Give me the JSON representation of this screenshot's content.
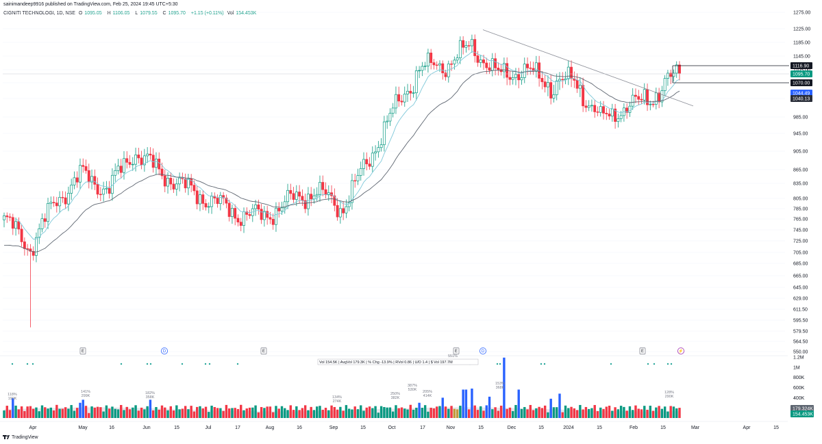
{
  "publisher": "sainimandeep9916 published on TradingView.com, Feb 25, 2024 19:45 UTC+5:30",
  "legend": {
    "symbol": "CIGNITI TECHNOLOGI, 1D, NSE",
    "o_label": "O",
    "o": "1095.05",
    "h_label": "H",
    "h": "1106.05",
    "l_label": "L",
    "l": "1079.55",
    "c_label": "C",
    "c": "1095.70",
    "change": "+1.15 (+0.11%)",
    "vol_label": "Vol",
    "vol": "154.453K"
  },
  "volume_stats": {
    "text": "Vol  154.5K  |  AvgVol  179.3K  |  % Chg  -13.9%  |  RVol  0.86  |  U/D  1.4  |  $ Vol  197.7M"
  },
  "footer": {
    "brand": "TradingView"
  },
  "colors": {
    "up": "#089981",
    "down": "#f23645",
    "ema_fast": "#7ec8d9",
    "ema_slow": "#5d6570",
    "trendline": "#8a8d96",
    "vol_up": "#089981",
    "vol_down": "#f23645",
    "vol_highlight": "#2962ff",
    "vol_gold": "#c49a3a",
    "dot": "#26a69a",
    "grid": "#f0f3fa"
  },
  "chart_data": [
    {
      "type": "candlestick",
      "symbol": "CIGNITI TECHNOLOGI",
      "interval": "1D",
      "exchange": "NSE",
      "y_scale": "log",
      "ylim": [
        550,
        1300
      ],
      "y_ticks": [
        "1275.00",
        "1225.00",
        "1185.00",
        "1145.00",
        "1105.00",
        "1070.00",
        "1044.49",
        "1040.13",
        "985.00",
        "945.00",
        "905.00",
        "865.00",
        "835.00",
        "805.00",
        "785.00",
        "765.00",
        "745.00",
        "725.00",
        "705.00",
        "685.00",
        "665.00",
        "645.00",
        "629.00",
        "611.50",
        "595.50",
        "579.50",
        "564.50",
        "550.00"
      ],
      "x_ticks": [
        "Apr",
        "May",
        "16",
        "Jun",
        "15",
        "Jul",
        "17",
        "Aug",
        "16",
        "Sep",
        "15",
        "Oct",
        "17",
        "Nov",
        "15",
        "Dec",
        "15",
        "2024",
        "15",
        "Feb",
        "15",
        "Mar",
        "Apr",
        "15"
      ],
      "price_tags": [
        {
          "label": "1116.90",
          "value": 1116.9,
          "style": "line-black"
        },
        {
          "label": "1095.70",
          "value": 1095.7,
          "style": "last-green"
        },
        {
          "label": "1070.00",
          "value": 1070.0,
          "style": "line-black"
        },
        {
          "label": "1044.49",
          "value": 1044.49,
          "style": "ema-blue"
        },
        {
          "label": "1040.13",
          "value": 1040.13,
          "style": "ema-dark"
        }
      ],
      "last_close": 1095.7,
      "key_points_close": [
        {
          "date": "Mar 28",
          "close": 765
        },
        {
          "date": "Apr 12",
          "close": 712
        },
        {
          "date": "Apr 26",
          "close": 800
        },
        {
          "date": "May 10",
          "close": 855
        },
        {
          "date": "May 24",
          "close": 822
        },
        {
          "date": "Jun 07",
          "close": 905
        },
        {
          "date": "Jun 21",
          "close": 860
        },
        {
          "date": "Jul 05",
          "close": 825
        },
        {
          "date": "Jul 19",
          "close": 800
        },
        {
          "date": "Aug 02",
          "close": 775
        },
        {
          "date": "Aug 16",
          "close": 770
        },
        {
          "date": "Aug 30",
          "close": 800
        },
        {
          "date": "Sep 13",
          "close": 820
        },
        {
          "date": "Sep 27",
          "close": 785
        },
        {
          "date": "Oct 11",
          "close": 880
        },
        {
          "date": "Oct 25",
          "close": 1005
        },
        {
          "date": "Nov 03",
          "close": 1110
        },
        {
          "date": "Nov 17",
          "close": 1120
        },
        {
          "date": "Nov 28",
          "close": 1175
        },
        {
          "date": "Dec 08",
          "close": 1090
        },
        {
          "date": "Dec 22",
          "close": 1105
        },
        {
          "date": "Jan 05",
          "close": 1070
        },
        {
          "date": "Jan 19",
          "close": 1075
        },
        {
          "date": "Jan 24",
          "close": 980
        },
        {
          "date": "Feb 07",
          "close": 1015
        },
        {
          "date": "Feb 16",
          "close": 1045
        },
        {
          "date": "Feb 23",
          "close": 1095.7
        }
      ],
      "events": [
        {
          "date": "May 01",
          "label": "E"
        },
        {
          "date": "Jun 01",
          "label": "D"
        },
        {
          "date": "Jul 27",
          "label": "E"
        },
        {
          "date": "Nov 03",
          "label": "E"
        },
        {
          "date": "Nov 10",
          "label": "D"
        },
        {
          "date": "Jan 30",
          "label": "E"
        },
        {
          "date": "Feb 18",
          "label": "⚡"
        }
      ]
    },
    {
      "type": "bar",
      "name": "Volume",
      "y_ticks": [
        "1.2M",
        "1M",
        "800K",
        "600K",
        "400K",
        "179.324K",
        "154.453K"
      ],
      "labeled_bars": [
        {
          "pct": "118%",
          "vol": "190K"
        },
        {
          "pct": "141%",
          "vol": "299K"
        },
        {
          "pct": "182%",
          "vol": "358K"
        },
        {
          "pct": "134%",
          "vol": "274K"
        },
        {
          "pct": "250%",
          "vol": "382K"
        },
        {
          "pct": "387%",
          "vol": "530K"
        },
        {
          "pct": "205%",
          "vol": "414K"
        },
        {
          "pct": "551%",
          "vol": ""
        },
        {
          "pct": "153%",
          "vol": "368K"
        },
        {
          "pct": "128%",
          "vol": "290K"
        }
      ]
    }
  ]
}
